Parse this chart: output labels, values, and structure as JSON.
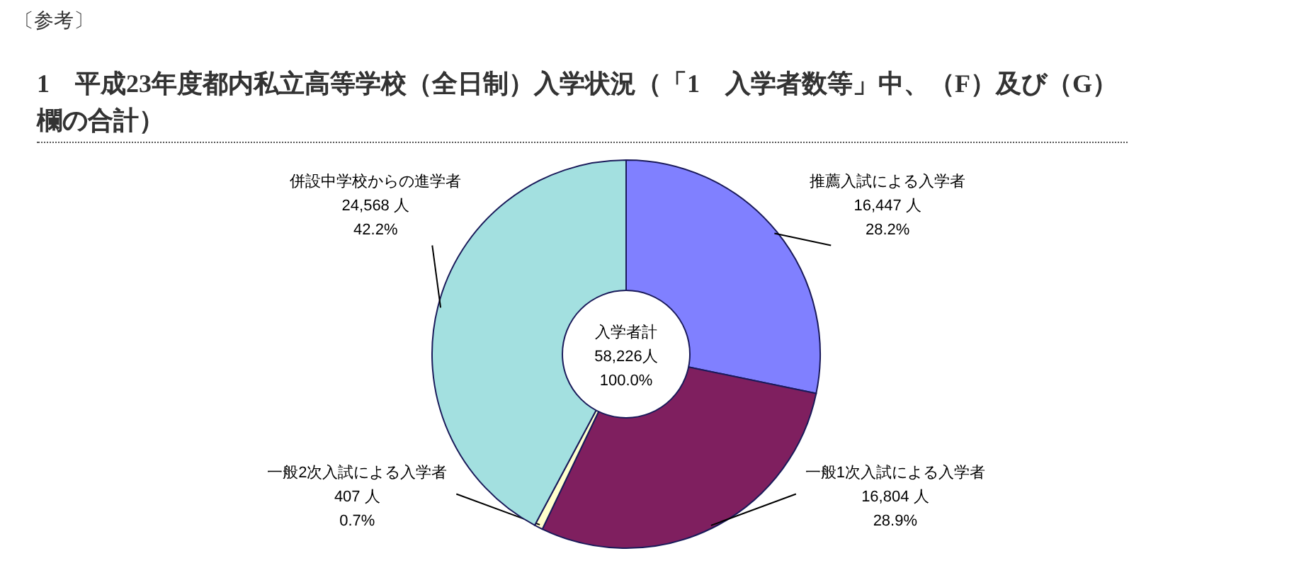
{
  "chart_data": {
    "type": "donut",
    "title": "1　平成23年度都内私立高等学校（全日制）入学状況（「1　入学者数等」中、（F）及び（G）欄の合計）",
    "categories": [
      "推薦入試による入学者",
      "一般1次入試による入学者",
      "一般2次入試による入学者",
      "併設中学校からの進学者"
    ],
    "values": [
      16447,
      16804,
      407,
      24568
    ],
    "colors": [
      "#8080ff",
      "#7f1f5f",
      "#ffffcc",
      "#a3e0e0"
    ],
    "value_labels": [
      "16,447 人\n28.2%",
      "16,804 人\n28.9%",
      "407 人\n0.7%",
      "24,568 人\n42.2%"
    ],
    "annotations": [
      "〔参考〕",
      "入学者計\n58,226人\n100.0%"
    ],
    "legend": false
  }
}
